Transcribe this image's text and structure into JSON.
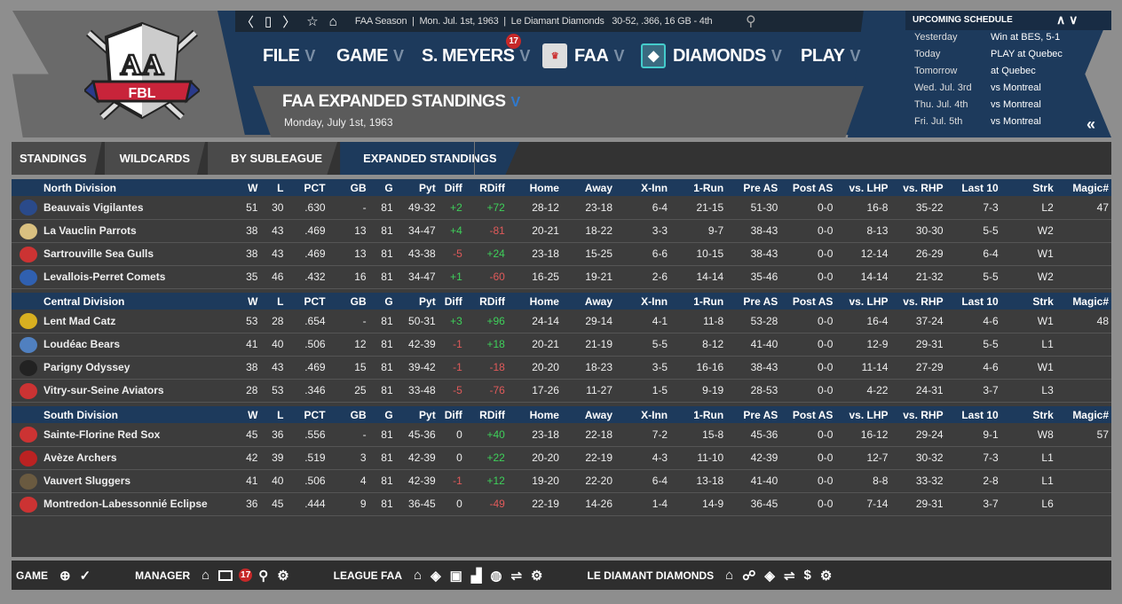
{
  "logo": {
    "top": "AA",
    "banner": "FBL"
  },
  "topbar": {
    "info": "FAA Season  |  Mon. Jul. 1st, 1963  |  Le Diamant Diamonds   30-52, .366, 16 GB - 4th"
  },
  "menu": [
    {
      "label": "FILE"
    },
    {
      "label": "GAME"
    },
    {
      "label": "S. MEYERS",
      "badge": "17"
    },
    {
      "label": "FAA"
    },
    {
      "label": "DIAMONDS"
    },
    {
      "label": "PLAY"
    }
  ],
  "page": {
    "title": "FAA EXPANDED STANDINGS",
    "subtitle": "Monday, July 1st, 1963"
  },
  "schedule": {
    "title": "UPCOMING SCHEDULE",
    "rows": [
      [
        "Yesterday",
        "Win at BES, 5-1"
      ],
      [
        "Today",
        "PLAY at Quebec"
      ],
      [
        "Tomorrow",
        "at Quebec"
      ],
      [
        "Wed. Jul. 3rd",
        "vs Montreal"
      ],
      [
        "Thu. Jul. 4th",
        "vs Montreal"
      ],
      [
        "Fri. Jul. 5th",
        "vs Montreal"
      ]
    ]
  },
  "tabs": [
    "STANDINGS",
    "WILDCARDS",
    "BY SUBLEAGUE",
    "EXPANDED STANDINGS"
  ],
  "columns": [
    "W",
    "L",
    "PCT",
    "GB",
    "G",
    "Pyt",
    "Diff",
    "RDiff",
    "Home",
    "Away",
    "X-Inn",
    "1-Run",
    "Pre AS",
    "Post AS",
    "vs. LHP",
    "vs. RHP",
    "Last 10",
    "Strk",
    "Magic#"
  ],
  "colors": {
    "team": [
      "#2a4a8a",
      "#d9c080",
      "#c33",
      "#3060b0",
      "#d9b020",
      "#5080c0",
      "#222",
      "#c33",
      "#c33",
      "#b22",
      "#6a5a40",
      "#c33"
    ]
  },
  "divisions": [
    {
      "name": "North Division",
      "teams": [
        [
          "Beauvais Vigilantes",
          "51",
          "30",
          ".630",
          "-",
          "81",
          "49-32",
          "+2",
          "+72",
          "28-12",
          "23-18",
          "6-4",
          "21-15",
          "51-30",
          "0-0",
          "16-8",
          "35-22",
          "7-3",
          "L2",
          "47"
        ],
        [
          "La Vauclin Parrots",
          "38",
          "43",
          ".469",
          "13",
          "81",
          "34-47",
          "+4",
          "-81",
          "20-21",
          "18-22",
          "3-3",
          "9-7",
          "38-43",
          "0-0",
          "8-13",
          "30-30",
          "5-5",
          "W2",
          ""
        ],
        [
          "Sartrouville Sea Gulls",
          "38",
          "43",
          ".469",
          "13",
          "81",
          "43-38",
          "-5",
          "+24",
          "23-18",
          "15-25",
          "6-6",
          "10-15",
          "38-43",
          "0-0",
          "12-14",
          "26-29",
          "6-4",
          "W1",
          ""
        ],
        [
          "Levallois-Perret Comets",
          "35",
          "46",
          ".432",
          "16",
          "81",
          "34-47",
          "+1",
          "-60",
          "16-25",
          "19-21",
          "2-6",
          "14-14",
          "35-46",
          "0-0",
          "14-14",
          "21-32",
          "5-5",
          "W2",
          ""
        ]
      ]
    },
    {
      "name": "Central Division",
      "teams": [
        [
          "Lent Mad Catz",
          "53",
          "28",
          ".654",
          "-",
          "81",
          "50-31",
          "+3",
          "+96",
          "24-14",
          "29-14",
          "4-1",
          "11-8",
          "53-28",
          "0-0",
          "16-4",
          "37-24",
          "4-6",
          "W1",
          "48"
        ],
        [
          "Loudéac Bears",
          "41",
          "40",
          ".506",
          "12",
          "81",
          "42-39",
          "-1",
          "+18",
          "20-21",
          "21-19",
          "5-5",
          "8-12",
          "41-40",
          "0-0",
          "12-9",
          "29-31",
          "5-5",
          "L1",
          ""
        ],
        [
          "Parigny Odyssey",
          "38",
          "43",
          ".469",
          "15",
          "81",
          "39-42",
          "-1",
          "-18",
          "20-20",
          "18-23",
          "3-5",
          "16-16",
          "38-43",
          "0-0",
          "11-14",
          "27-29",
          "4-6",
          "W1",
          ""
        ],
        [
          "Vitry-sur-Seine Aviators",
          "28",
          "53",
          ".346",
          "25",
          "81",
          "33-48",
          "-5",
          "-76",
          "17-26",
          "11-27",
          "1-5",
          "9-19",
          "28-53",
          "0-0",
          "4-22",
          "24-31",
          "3-7",
          "L3",
          ""
        ]
      ]
    },
    {
      "name": "South Division",
      "teams": [
        [
          "Sainte-Florine Red Sox",
          "45",
          "36",
          ".556",
          "-",
          "81",
          "45-36",
          "0",
          "+40",
          "23-18",
          "22-18",
          "7-2",
          "15-8",
          "45-36",
          "0-0",
          "16-12",
          "29-24",
          "9-1",
          "W8",
          "57"
        ],
        [
          "Avèze Archers",
          "42",
          "39",
          ".519",
          "3",
          "81",
          "42-39",
          "0",
          "+22",
          "20-20",
          "22-19",
          "4-3",
          "11-10",
          "42-39",
          "0-0",
          "12-7",
          "30-32",
          "7-3",
          "L1",
          ""
        ],
        [
          "Vauvert Sluggers",
          "41",
          "40",
          ".506",
          "4",
          "81",
          "42-39",
          "-1",
          "+12",
          "19-20",
          "22-20",
          "6-4",
          "13-18",
          "41-40",
          "0-0",
          "8-8",
          "33-32",
          "2-8",
          "L1",
          ""
        ],
        [
          "Montredon-Labessonnié Eclipse",
          "36",
          "45",
          ".444",
          "9",
          "81",
          "36-45",
          "0",
          "-49",
          "22-19",
          "14-26",
          "1-4",
          "14-9",
          "36-45",
          "0-0",
          "7-14",
          "29-31",
          "3-7",
          "L6",
          ""
        ]
      ]
    }
  ],
  "bottom": {
    "game": "GAME",
    "manager": "MANAGER",
    "manager_badge": "17",
    "league": "LEAGUE FAA",
    "team": "LE DIAMANT DIAMONDS"
  }
}
